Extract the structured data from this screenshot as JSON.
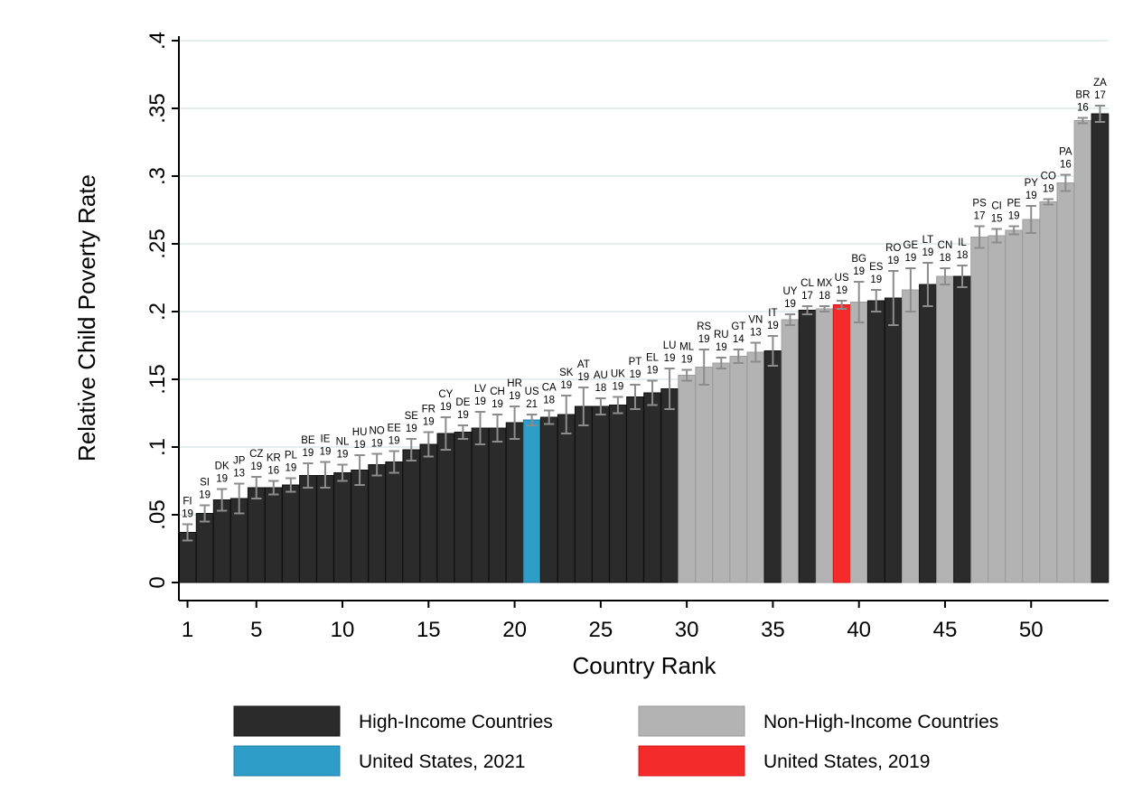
{
  "chart_data": {
    "type": "bar",
    "xlabel": "Country Rank",
    "ylabel": "Relative Child Poverty Rate",
    "ylim": [
      0,
      0.4
    ],
    "xlim": [
      0.5,
      54.5
    ],
    "y_ticks": [
      {
        "value": 0,
        "label": "0"
      },
      {
        "value": 0.05,
        "label": ".05"
      },
      {
        "value": 0.1,
        "label": ".1"
      },
      {
        "value": 0.15,
        "label": ".15"
      },
      {
        "value": 0.2,
        "label": ".2"
      },
      {
        "value": 0.25,
        "label": ".25"
      },
      {
        "value": 0.3,
        "label": ".3"
      },
      {
        "value": 0.35,
        "label": ".35"
      },
      {
        "value": 0.4,
        "label": ".4"
      }
    ],
    "x_ticks": [
      {
        "value": 1,
        "label": "1"
      },
      {
        "value": 5,
        "label": "5"
      },
      {
        "value": 10,
        "label": "10"
      },
      {
        "value": 15,
        "label": "15"
      },
      {
        "value": 20,
        "label": "20"
      },
      {
        "value": 25,
        "label": "25"
      },
      {
        "value": 30,
        "label": "30"
      },
      {
        "value": 35,
        "label": "35"
      },
      {
        "value": 40,
        "label": "40"
      },
      {
        "value": 45,
        "label": "45"
      },
      {
        "value": 50,
        "label": "50"
      }
    ],
    "grid": "horizontal",
    "legend_position": "bottom",
    "legend": [
      {
        "key": "high",
        "label": "High-Income Countries"
      },
      {
        "key": "nonhigh",
        "label": "Non-High-Income Countries"
      },
      {
        "key": "us21",
        "label": "United States, 2021"
      },
      {
        "key": "us19",
        "label": "United States, 2019"
      }
    ],
    "colors": {
      "high": "#2b2b2b",
      "nonhigh": "#b3b3b3",
      "us21": "#2e9dc8",
      "us19": "#f52a2a",
      "error": "#8c8c8c",
      "grid": "#dce8ea"
    },
    "bars": [
      {
        "rank": 1,
        "country": "FI",
        "year": "19",
        "value": 0.037,
        "lo": 0.031,
        "hi": 0.043,
        "group": "high"
      },
      {
        "rank": 2,
        "country": "SI",
        "year": "19",
        "value": 0.051,
        "lo": 0.045,
        "hi": 0.057,
        "group": "high"
      },
      {
        "rank": 3,
        "country": "DK",
        "year": "19",
        "value": 0.061,
        "lo": 0.053,
        "hi": 0.069,
        "group": "high"
      },
      {
        "rank": 4,
        "country": "JP",
        "year": "13",
        "value": 0.062,
        "lo": 0.051,
        "hi": 0.073,
        "group": "high"
      },
      {
        "rank": 5,
        "country": "CZ",
        "year": "19",
        "value": 0.07,
        "lo": 0.062,
        "hi": 0.078,
        "group": "high"
      },
      {
        "rank": 6,
        "country": "KR",
        "year": "16",
        "value": 0.07,
        "lo": 0.065,
        "hi": 0.075,
        "group": "high"
      },
      {
        "rank": 7,
        "country": "PL",
        "year": "19",
        "value": 0.072,
        "lo": 0.067,
        "hi": 0.077,
        "group": "high"
      },
      {
        "rank": 8,
        "country": "BE",
        "year": "19",
        "value": 0.079,
        "lo": 0.07,
        "hi": 0.088,
        "group": "high"
      },
      {
        "rank": 9,
        "country": "IE",
        "year": "19",
        "value": 0.079,
        "lo": 0.07,
        "hi": 0.089,
        "group": "high"
      },
      {
        "rank": 10,
        "country": "NL",
        "year": "19",
        "value": 0.081,
        "lo": 0.075,
        "hi": 0.087,
        "group": "high"
      },
      {
        "rank": 11,
        "country": "HU",
        "year": "19",
        "value": 0.083,
        "lo": 0.072,
        "hi": 0.094,
        "group": "high"
      },
      {
        "rank": 12,
        "country": "NO",
        "year": "19",
        "value": 0.087,
        "lo": 0.079,
        "hi": 0.095,
        "group": "high"
      },
      {
        "rank": 13,
        "country": "EE",
        "year": "19",
        "value": 0.089,
        "lo": 0.081,
        "hi": 0.097,
        "group": "high"
      },
      {
        "rank": 14,
        "country": "SE",
        "year": "19",
        "value": 0.098,
        "lo": 0.09,
        "hi": 0.106,
        "group": "high"
      },
      {
        "rank": 15,
        "country": "FR",
        "year": "19",
        "value": 0.102,
        "lo": 0.093,
        "hi": 0.111,
        "group": "high"
      },
      {
        "rank": 16,
        "country": "CY",
        "year": "19",
        "value": 0.11,
        "lo": 0.098,
        "hi": 0.122,
        "group": "high"
      },
      {
        "rank": 17,
        "country": "DE",
        "year": "19",
        "value": 0.111,
        "lo": 0.106,
        "hi": 0.116,
        "group": "high"
      },
      {
        "rank": 18,
        "country": "LV",
        "year": "19",
        "value": 0.114,
        "lo": 0.102,
        "hi": 0.126,
        "group": "high"
      },
      {
        "rank": 19,
        "country": "CH",
        "year": "19",
        "value": 0.114,
        "lo": 0.104,
        "hi": 0.124,
        "group": "high"
      },
      {
        "rank": 20,
        "country": "HR",
        "year": "19",
        "value": 0.118,
        "lo": 0.106,
        "hi": 0.13,
        "group": "high"
      },
      {
        "rank": 21,
        "country": "US",
        "year": "21",
        "value": 0.12,
        "lo": 0.116,
        "hi": 0.124,
        "group": "us21"
      },
      {
        "rank": 22,
        "country": "CA",
        "year": "18",
        "value": 0.122,
        "lo": 0.117,
        "hi": 0.127,
        "group": "high"
      },
      {
        "rank": 23,
        "country": "SK",
        "year": "19",
        "value": 0.124,
        "lo": 0.11,
        "hi": 0.138,
        "group": "high"
      },
      {
        "rank": 24,
        "country": "AT",
        "year": "19",
        "value": 0.13,
        "lo": 0.116,
        "hi": 0.144,
        "group": "high"
      },
      {
        "rank": 25,
        "country": "AU",
        "year": "18",
        "value": 0.13,
        "lo": 0.124,
        "hi": 0.136,
        "group": "high"
      },
      {
        "rank": 26,
        "country": "UK",
        "year": "19",
        "value": 0.131,
        "lo": 0.125,
        "hi": 0.137,
        "group": "high"
      },
      {
        "rank": 27,
        "country": "PT",
        "year": "19",
        "value": 0.137,
        "lo": 0.128,
        "hi": 0.146,
        "group": "high"
      },
      {
        "rank": 28,
        "country": "EL",
        "year": "19",
        "value": 0.14,
        "lo": 0.131,
        "hi": 0.149,
        "group": "high"
      },
      {
        "rank": 29,
        "country": "LU",
        "year": "19",
        "value": 0.143,
        "lo": 0.128,
        "hi": 0.158,
        "group": "high"
      },
      {
        "rank": 30,
        "country": "ML",
        "year": "19",
        "value": 0.153,
        "lo": 0.149,
        "hi": 0.157,
        "group": "nonhigh"
      },
      {
        "rank": 31,
        "country": "RS",
        "year": "19",
        "value": 0.159,
        "lo": 0.146,
        "hi": 0.172,
        "group": "nonhigh"
      },
      {
        "rank": 32,
        "country": "RU",
        "year": "19",
        "value": 0.162,
        "lo": 0.158,
        "hi": 0.166,
        "group": "nonhigh"
      },
      {
        "rank": 33,
        "country": "GT",
        "year": "14",
        "value": 0.167,
        "lo": 0.162,
        "hi": 0.172,
        "group": "nonhigh"
      },
      {
        "rank": 34,
        "country": "VN",
        "year": "13",
        "value": 0.17,
        "lo": 0.163,
        "hi": 0.177,
        "group": "nonhigh"
      },
      {
        "rank": 35,
        "country": "IT",
        "year": "19",
        "value": 0.171,
        "lo": 0.16,
        "hi": 0.182,
        "group": "high"
      },
      {
        "rank": 36,
        "country": "UY",
        "year": "19",
        "value": 0.194,
        "lo": 0.19,
        "hi": 0.198,
        "group": "nonhigh"
      },
      {
        "rank": 37,
        "country": "CL",
        "year": "17",
        "value": 0.201,
        "lo": 0.198,
        "hi": 0.204,
        "group": "high"
      },
      {
        "rank": 38,
        "country": "MX",
        "year": "18",
        "value": 0.202,
        "lo": 0.2,
        "hi": 0.204,
        "group": "nonhigh"
      },
      {
        "rank": 39,
        "country": "US",
        "year": "19",
        "value": 0.205,
        "lo": 0.202,
        "hi": 0.208,
        "group": "us19"
      },
      {
        "rank": 40,
        "country": "BG",
        "year": "19",
        "value": 0.207,
        "lo": 0.192,
        "hi": 0.222,
        "group": "nonhigh"
      },
      {
        "rank": 41,
        "country": "ES",
        "year": "19",
        "value": 0.208,
        "lo": 0.2,
        "hi": 0.216,
        "group": "high"
      },
      {
        "rank": 42,
        "country": "RO",
        "year": "19",
        "value": 0.21,
        "lo": 0.19,
        "hi": 0.23,
        "group": "high"
      },
      {
        "rank": 43,
        "country": "GE",
        "year": "19",
        "value": 0.216,
        "lo": 0.2,
        "hi": 0.232,
        "group": "nonhigh"
      },
      {
        "rank": 44,
        "country": "LT",
        "year": "19",
        "value": 0.22,
        "lo": 0.204,
        "hi": 0.236,
        "group": "high"
      },
      {
        "rank": 45,
        "country": "CN",
        "year": "18",
        "value": 0.226,
        "lo": 0.22,
        "hi": 0.232,
        "group": "nonhigh"
      },
      {
        "rank": 46,
        "country": "IL",
        "year": "18",
        "value": 0.226,
        "lo": 0.218,
        "hi": 0.234,
        "group": "high"
      },
      {
        "rank": 47,
        "country": "PS",
        "year": "17",
        "value": 0.255,
        "lo": 0.247,
        "hi": 0.263,
        "group": "nonhigh"
      },
      {
        "rank": 48,
        "country": "CI",
        "year": "15",
        "value": 0.256,
        "lo": 0.251,
        "hi": 0.261,
        "group": "nonhigh"
      },
      {
        "rank": 49,
        "country": "PE",
        "year": "19",
        "value": 0.26,
        "lo": 0.257,
        "hi": 0.263,
        "group": "nonhigh"
      },
      {
        "rank": 50,
        "country": "PY",
        "year": "19",
        "value": 0.268,
        "lo": 0.258,
        "hi": 0.278,
        "group": "nonhigh"
      },
      {
        "rank": 51,
        "country": "CO",
        "year": "19",
        "value": 0.281,
        "lo": 0.279,
        "hi": 0.283,
        "group": "nonhigh"
      },
      {
        "rank": 52,
        "country": "PA",
        "year": "16",
        "value": 0.295,
        "lo": 0.289,
        "hi": 0.301,
        "group": "nonhigh"
      },
      {
        "rank": 53,
        "country": "BR",
        "year": "16",
        "value": 0.341,
        "lo": 0.339,
        "hi": 0.343,
        "group": "nonhigh"
      },
      {
        "rank": 54,
        "country": "ZA",
        "year": "17",
        "value": 0.346,
        "lo": 0.34,
        "hi": 0.352,
        "group": "high"
      }
    ]
  }
}
